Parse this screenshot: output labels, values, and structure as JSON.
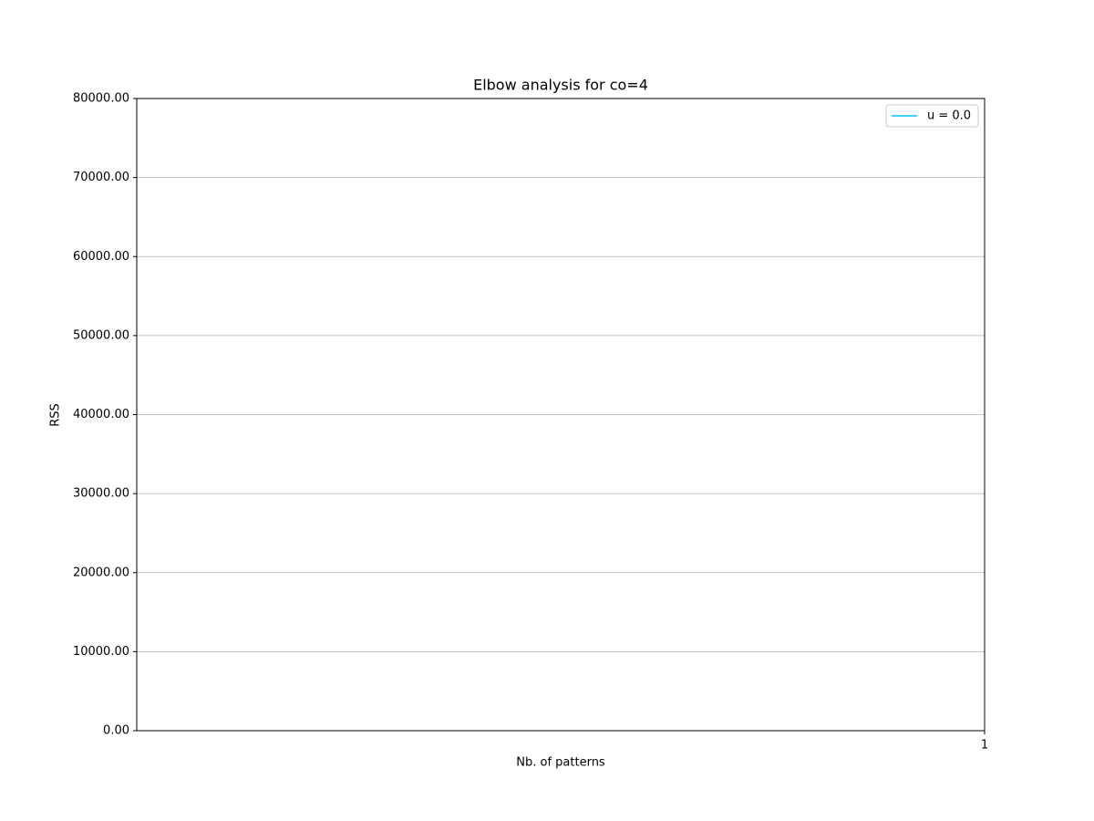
{
  "chart_data": {
    "type": "line",
    "title": "Elbow analysis for co=4",
    "xlabel": "Nb. of patterns",
    "ylabel": "RSS",
    "x": [],
    "series": [
      {
        "name": "u = 0.0",
        "color": "#00bfff",
        "values": []
      }
    ],
    "xlim": [
      0,
      1
    ],
    "xticks": [
      1
    ],
    "ylim": [
      0,
      80000
    ],
    "yticks": [
      {
        "value": 0,
        "label": "0.00"
      },
      {
        "value": 10000,
        "label": "10000.00"
      },
      {
        "value": 20000,
        "label": "20000.00"
      },
      {
        "value": 30000,
        "label": "30000.00"
      },
      {
        "value": 40000,
        "label": "40000.00"
      },
      {
        "value": 50000,
        "label": "50000.00"
      },
      {
        "value": 60000,
        "label": "60000.00"
      },
      {
        "value": 70000,
        "label": "70000.00"
      },
      {
        "value": 80000,
        "label": "80000.00"
      }
    ],
    "grid": "y",
    "legend": "upper right"
  }
}
